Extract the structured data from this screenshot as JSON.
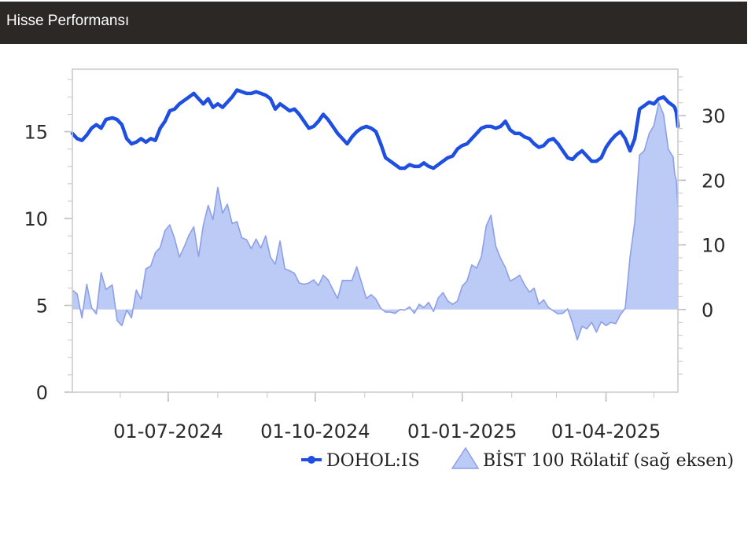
{
  "header": {
    "title": "Hisse Performansı"
  },
  "chart_data": {
    "type": "line",
    "left_axis": {
      "ticks": [
        0,
        5,
        10,
        15
      ],
      "range": [
        0,
        18.6
      ]
    },
    "right_axis": {
      "ticks": [
        0,
        10,
        20,
        30
      ],
      "range": [
        -12.8,
        37.2
      ]
    },
    "x_ticks": [
      {
        "date": "2024-07-01",
        "label": "01-07-2024"
      },
      {
        "date": "2024-10-01",
        "label": "01-10-2024"
      },
      {
        "date": "2025-01-01",
        "label": "01-01-2025"
      },
      {
        "date": "2025-04-01",
        "label": "01-04-2025"
      }
    ],
    "x_range": [
      "2024-05-02",
      "2025-05-16"
    ],
    "grid": false,
    "legend_position": "bottom-right",
    "series": [
      {
        "name": "DOHOL:IS",
        "axis": "left",
        "type": "line",
        "color": "#1f4fe0",
        "points": [
          [
            "2024-05-02",
            14.9
          ],
          [
            "2024-05-05",
            14.6
          ],
          [
            "2024-05-08",
            14.5
          ],
          [
            "2024-05-11",
            14.8
          ],
          [
            "2024-05-14",
            15.2
          ],
          [
            "2024-05-17",
            15.4
          ],
          [
            "2024-05-20",
            15.2
          ],
          [
            "2024-05-23",
            15.7
          ],
          [
            "2024-05-27",
            15.8
          ],
          [
            "2024-05-30",
            15.7
          ],
          [
            "2024-06-02",
            15.4
          ],
          [
            "2024-06-05",
            14.6
          ],
          [
            "2024-06-08",
            14.3
          ],
          [
            "2024-06-11",
            14.4
          ],
          [
            "2024-06-14",
            14.6
          ],
          [
            "2024-06-17",
            14.4
          ],
          [
            "2024-06-20",
            14.6
          ],
          [
            "2024-06-23",
            14.5
          ],
          [
            "2024-06-26",
            15.2
          ],
          [
            "2024-06-29",
            15.6
          ],
          [
            "2024-07-02",
            16.2
          ],
          [
            "2024-07-05",
            16.3
          ],
          [
            "2024-07-08",
            16.6
          ],
          [
            "2024-07-11",
            16.8
          ],
          [
            "2024-07-14",
            17.0
          ],
          [
            "2024-07-17",
            17.2
          ],
          [
            "2024-07-20",
            16.9
          ],
          [
            "2024-07-23",
            16.6
          ],
          [
            "2024-07-26",
            16.9
          ],
          [
            "2024-07-29",
            16.4
          ],
          [
            "2024-08-01",
            16.6
          ],
          [
            "2024-08-04",
            16.4
          ],
          [
            "2024-08-07",
            16.7
          ],
          [
            "2024-08-10",
            17.0
          ],
          [
            "2024-08-13",
            17.4
          ],
          [
            "2024-08-16",
            17.3
          ],
          [
            "2024-08-19",
            17.2
          ],
          [
            "2024-08-22",
            17.2
          ],
          [
            "2024-08-25",
            17.3
          ],
          [
            "2024-08-28",
            17.2
          ],
          [
            "2024-08-31",
            17.1
          ],
          [
            "2024-09-03",
            16.9
          ],
          [
            "2024-09-06",
            16.3
          ],
          [
            "2024-09-09",
            16.6
          ],
          [
            "2024-09-12",
            16.4
          ],
          [
            "2024-09-15",
            16.2
          ],
          [
            "2024-09-18",
            16.3
          ],
          [
            "2024-09-21",
            16.0
          ],
          [
            "2024-09-24",
            15.6
          ],
          [
            "2024-09-27",
            15.2
          ],
          [
            "2024-09-30",
            15.3
          ],
          [
            "2024-10-03",
            15.6
          ],
          [
            "2024-10-06",
            16.0
          ],
          [
            "2024-10-09",
            15.7
          ],
          [
            "2024-10-12",
            15.3
          ],
          [
            "2024-10-15",
            14.9
          ],
          [
            "2024-10-18",
            14.6
          ],
          [
            "2024-10-21",
            14.3
          ],
          [
            "2024-10-24",
            14.7
          ],
          [
            "2024-10-27",
            15.0
          ],
          [
            "2024-10-30",
            15.2
          ],
          [
            "2024-11-02",
            15.3
          ],
          [
            "2024-11-05",
            15.2
          ],
          [
            "2024-11-08",
            15.0
          ],
          [
            "2024-11-11",
            14.3
          ],
          [
            "2024-11-14",
            13.5
          ],
          [
            "2024-11-17",
            13.3
          ],
          [
            "2024-11-20",
            13.1
          ],
          [
            "2024-11-23",
            12.9
          ],
          [
            "2024-11-26",
            12.9
          ],
          [
            "2024-11-29",
            13.1
          ],
          [
            "2024-12-02",
            13.0
          ],
          [
            "2024-12-05",
            13.0
          ],
          [
            "2024-12-08",
            13.2
          ],
          [
            "2024-12-11",
            13.0
          ],
          [
            "2024-12-14",
            12.9
          ],
          [
            "2024-12-17",
            13.1
          ],
          [
            "2024-12-20",
            13.3
          ],
          [
            "2024-12-23",
            13.5
          ],
          [
            "2024-12-26",
            13.6
          ],
          [
            "2024-12-29",
            14.0
          ],
          [
            "2025-01-01",
            14.2
          ],
          [
            "2025-01-04",
            14.3
          ],
          [
            "2025-01-07",
            14.6
          ],
          [
            "2025-01-10",
            14.9
          ],
          [
            "2025-01-13",
            15.2
          ],
          [
            "2025-01-16",
            15.3
          ],
          [
            "2025-01-19",
            15.3
          ],
          [
            "2025-01-22",
            15.2
          ],
          [
            "2025-01-25",
            15.3
          ],
          [
            "2025-01-28",
            15.6
          ],
          [
            "2025-01-31",
            15.1
          ],
          [
            "2025-02-03",
            14.9
          ],
          [
            "2025-02-06",
            14.9
          ],
          [
            "2025-02-09",
            14.7
          ],
          [
            "2025-02-12",
            14.6
          ],
          [
            "2025-02-15",
            14.3
          ],
          [
            "2025-02-18",
            14.1
          ],
          [
            "2025-02-21",
            14.2
          ],
          [
            "2025-02-24",
            14.5
          ],
          [
            "2025-02-27",
            14.6
          ],
          [
            "2025-03-02",
            14.3
          ],
          [
            "2025-03-05",
            13.9
          ],
          [
            "2025-03-08",
            13.5
          ],
          [
            "2025-03-11",
            13.4
          ],
          [
            "2025-03-14",
            13.7
          ],
          [
            "2025-03-17",
            13.9
          ],
          [
            "2025-03-20",
            13.6
          ],
          [
            "2025-03-23",
            13.3
          ],
          [
            "2025-03-26",
            13.3
          ],
          [
            "2025-03-29",
            13.5
          ],
          [
            "2025-04-01",
            14.1
          ],
          [
            "2025-04-04",
            14.5
          ],
          [
            "2025-04-07",
            14.8
          ],
          [
            "2025-04-10",
            15.0
          ],
          [
            "2025-04-13",
            14.6
          ],
          [
            "2025-04-16",
            13.9
          ],
          [
            "2025-04-19",
            14.6
          ],
          [
            "2025-04-22",
            16.3
          ],
          [
            "2025-04-25",
            16.5
          ],
          [
            "2025-04-28",
            16.7
          ],
          [
            "2025-05-01",
            16.6
          ],
          [
            "2025-05-04",
            16.9
          ],
          [
            "2025-05-07",
            17.0
          ],
          [
            "2025-05-10",
            16.7
          ],
          [
            "2025-05-13",
            16.5
          ],
          [
            "2025-05-14",
            16.4
          ],
          [
            "2025-05-15",
            16.1
          ],
          [
            "2025-05-16",
            15.3
          ]
        ]
      },
      {
        "name": "BİST 100 Rölatif (sağ eksen)",
        "axis": "right",
        "type": "area",
        "color": "#8d9fe8",
        "points": [
          [
            "2024-05-02",
            3.0
          ],
          [
            "2024-05-05",
            2.4
          ],
          [
            "2024-05-08",
            -1.3
          ],
          [
            "2024-05-11",
            3.9
          ],
          [
            "2024-05-14",
            0.3
          ],
          [
            "2024-05-17",
            -0.7
          ],
          [
            "2024-05-20",
            5.7
          ],
          [
            "2024-05-23",
            3.1
          ],
          [
            "2024-05-27",
            3.8
          ],
          [
            "2024-05-30",
            -1.7
          ],
          [
            "2024-06-02",
            -2.5
          ],
          [
            "2024-06-05",
            -0.1
          ],
          [
            "2024-06-08",
            -1.3
          ],
          [
            "2024-06-11",
            3.0
          ],
          [
            "2024-06-14",
            1.6
          ],
          [
            "2024-06-17",
            6.3
          ],
          [
            "2024-06-20",
            6.7
          ],
          [
            "2024-06-23",
            8.8
          ],
          [
            "2024-06-26",
            9.6
          ],
          [
            "2024-06-29",
            12.2
          ],
          [
            "2024-07-02",
            13.1
          ],
          [
            "2024-07-05",
            11.0
          ],
          [
            "2024-07-08",
            8.1
          ],
          [
            "2024-07-11",
            9.7
          ],
          [
            "2024-07-14",
            11.5
          ],
          [
            "2024-07-17",
            12.8
          ],
          [
            "2024-07-20",
            8.2
          ],
          [
            "2024-07-23",
            13.1
          ],
          [
            "2024-07-26",
            16.1
          ],
          [
            "2024-07-29",
            13.9
          ],
          [
            "2024-08-01",
            18.9
          ],
          [
            "2024-08-04",
            14.9
          ],
          [
            "2024-08-07",
            16.3
          ],
          [
            "2024-08-10",
            13.3
          ],
          [
            "2024-08-13",
            13.6
          ],
          [
            "2024-08-16",
            11.1
          ],
          [
            "2024-08-19",
            10.8
          ],
          [
            "2024-08-22",
            9.4
          ],
          [
            "2024-08-25",
            10.9
          ],
          [
            "2024-08-28",
            9.5
          ],
          [
            "2024-08-31",
            11.4
          ],
          [
            "2024-09-03",
            8.1
          ],
          [
            "2024-09-06",
            7.0
          ],
          [
            "2024-09-09",
            10.6
          ],
          [
            "2024-09-12",
            6.3
          ],
          [
            "2024-09-15",
            6.0
          ],
          [
            "2024-09-18",
            5.6
          ],
          [
            "2024-09-21",
            4.1
          ],
          [
            "2024-09-24",
            3.9
          ],
          [
            "2024-09-27",
            4.1
          ],
          [
            "2024-09-30",
            4.6
          ],
          [
            "2024-10-03",
            3.7
          ],
          [
            "2024-10-06",
            5.3
          ],
          [
            "2024-10-09",
            4.6
          ],
          [
            "2024-10-12",
            3.1
          ],
          [
            "2024-10-15",
            1.7
          ],
          [
            "2024-10-18",
            4.5
          ],
          [
            "2024-10-21",
            4.5
          ],
          [
            "2024-10-24",
            4.5
          ],
          [
            "2024-10-27",
            6.6
          ],
          [
            "2024-10-30",
            4.2
          ],
          [
            "2024-11-02",
            1.7
          ],
          [
            "2024-11-05",
            2.3
          ],
          [
            "2024-11-08",
            1.6
          ],
          [
            "2024-11-11",
            0.2
          ],
          [
            "2024-11-14",
            -0.4
          ],
          [
            "2024-11-17",
            -0.4
          ],
          [
            "2024-11-20",
            -0.6
          ],
          [
            "2024-11-23",
            0.0
          ],
          [
            "2024-11-26",
            -0.1
          ],
          [
            "2024-11-29",
            0.4
          ],
          [
            "2024-12-02",
            -0.6
          ],
          [
            "2024-12-05",
            0.8
          ],
          [
            "2024-12-08",
            0.3
          ],
          [
            "2024-12-11",
            1.1
          ],
          [
            "2024-12-14",
            -0.3
          ],
          [
            "2024-12-17",
            1.8
          ],
          [
            "2024-12-20",
            2.6
          ],
          [
            "2024-12-23",
            1.3
          ],
          [
            "2024-12-26",
            0.8
          ],
          [
            "2024-12-29",
            1.3
          ],
          [
            "2025-01-01",
            3.6
          ],
          [
            "2025-01-04",
            4.4
          ],
          [
            "2025-01-07",
            6.9
          ],
          [
            "2025-01-10",
            6.4
          ],
          [
            "2025-01-13",
            8.2
          ],
          [
            "2025-01-16",
            12.9
          ],
          [
            "2025-01-19",
            14.6
          ],
          [
            "2025-01-22",
            9.8
          ],
          [
            "2025-01-25",
            7.9
          ],
          [
            "2025-01-28",
            6.5
          ],
          [
            "2025-01-31",
            4.4
          ],
          [
            "2025-02-03",
            4.8
          ],
          [
            "2025-02-06",
            5.3
          ],
          [
            "2025-02-09",
            3.8
          ],
          [
            "2025-02-12",
            2.7
          ],
          [
            "2025-02-15",
            3.3
          ],
          [
            "2025-02-18",
            0.8
          ],
          [
            "2025-02-21",
            1.5
          ],
          [
            "2025-02-24",
            0.3
          ],
          [
            "2025-02-27",
            -0.2
          ],
          [
            "2025-03-02",
            -0.7
          ],
          [
            "2025-03-05",
            -0.6
          ],
          [
            "2025-03-08",
            0.1
          ],
          [
            "2025-03-11",
            -2.1
          ],
          [
            "2025-03-14",
            -4.7
          ],
          [
            "2025-03-17",
            -2.6
          ],
          [
            "2025-03-20",
            -3.0
          ],
          [
            "2025-03-23",
            -2.0
          ],
          [
            "2025-03-26",
            -3.5
          ],
          [
            "2025-03-29",
            -1.9
          ],
          [
            "2025-04-01",
            -2.5
          ],
          [
            "2025-04-04",
            -2.0
          ],
          [
            "2025-04-07",
            -2.2
          ],
          [
            "2025-04-10",
            -0.8
          ],
          [
            "2025-04-13",
            0.2
          ],
          [
            "2025-04-16",
            8.1
          ],
          [
            "2025-04-19",
            13.5
          ],
          [
            "2025-04-22",
            23.9
          ],
          [
            "2025-04-25",
            24.6
          ],
          [
            "2025-04-28",
            27.2
          ],
          [
            "2025-05-01",
            28.5
          ],
          [
            "2025-05-04",
            32.0
          ],
          [
            "2025-05-07",
            30.2
          ],
          [
            "2025-05-10",
            24.8
          ],
          [
            "2025-05-13",
            23.6
          ],
          [
            "2025-05-14",
            21.0
          ],
          [
            "2025-05-15",
            20.0
          ],
          [
            "2025-05-16",
            15.7
          ]
        ]
      }
    ]
  }
}
